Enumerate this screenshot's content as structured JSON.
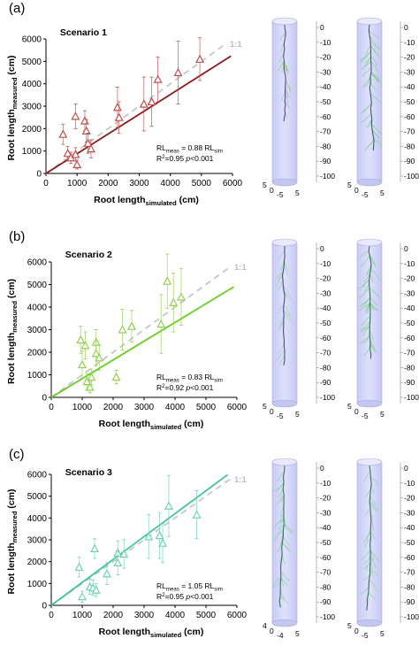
{
  "panels": [
    {
      "letter": "(a)",
      "scenario": "Scenario 1",
      "color": "#c0504d",
      "line_color": "#8b1a1a",
      "eq": {
        "rl": "RL",
        "meas": "meas",
        "eq": " = 0.88 RL",
        "sim": "sim",
        "r2a": "R",
        "r2sup": "2",
        "r2b": "=0.95 ",
        "p": "p",
        "pval": "<0.001"
      }
    },
    {
      "letter": "(b)",
      "scenario": "Scenario 2",
      "color": "#92d050",
      "line_color": "#66cc22",
      "eq": {
        "rl": "RL",
        "meas": "meas",
        "eq": " = 0.83 RL",
        "sim": "sim",
        "r2a": "R",
        "r2sup": "2",
        "r2b": "=0.92 ",
        "p": "p",
        "pval": "<0.001"
      }
    },
    {
      "letter": "(c)",
      "scenario": "Scenario 3",
      "color": "#6fd3b0",
      "line_color": "#40c4a4",
      "eq": {
        "rl": "RL",
        "meas": "meas",
        "eq": " = 1.05 RL",
        "sim": "sim",
        "r2a": "R",
        "r2sup": "2",
        "r2b": "=0.95 ",
        "p": "p",
        "pval": "<0.001"
      }
    }
  ],
  "one_to_one_label": "1:1",
  "axis_labels": {
    "x_main": "Root length",
    "x_sub": "simulated",
    "x_unit": " (cm)",
    "y_main": "Root length",
    "y_sub": "measured",
    "y_unit": " (cm)"
  },
  "depth_ticks": [
    "0",
    "-10",
    "-20",
    "-30",
    "-40",
    "-50",
    "-60",
    "-70",
    "-80",
    "-90",
    "-100"
  ],
  "base_ticks": {
    "a": [
      "5",
      "0",
      "-5",
      "5"
    ],
    "b": [
      "5",
      "0",
      "-5",
      "5"
    ],
    "c_left": [
      "4",
      "0",
      "-4",
      "5"
    ],
    "c_right": [
      "5",
      "0",
      "-5",
      "5"
    ]
  },
  "chart_data": [
    {
      "type": "scatter",
      "title": "Scenario 1",
      "xlabel": "Root length simulated (cm)",
      "ylabel": "Root length measured (cm)",
      "xlim": [
        0,
        6000
      ],
      "ylim": [
        0,
        6000
      ],
      "xticks": [
        0,
        1000,
        2000,
        3000,
        4000,
        5000,
        6000
      ],
      "yticks": [
        0,
        1000,
        2000,
        3000,
        4000,
        5000,
        6000
      ],
      "fit_slope": 0.88,
      "fit_xmax": 5950,
      "points": [
        {
          "x": 550,
          "y": 1750,
          "err": 450
        },
        {
          "x": 700,
          "y": 900,
          "err": 300
        },
        {
          "x": 800,
          "y": 700,
          "err": 250
        },
        {
          "x": 950,
          "y": 2550,
          "err": 550
        },
        {
          "x": 950,
          "y": 850,
          "err": 300
        },
        {
          "x": 1000,
          "y": 400,
          "err": 200
        },
        {
          "x": 1250,
          "y": 2350,
          "err": 450
        },
        {
          "x": 1300,
          "y": 1900,
          "err": 500
        },
        {
          "x": 1350,
          "y": 1350,
          "err": 450
        },
        {
          "x": 1450,
          "y": 1100,
          "err": 400
        },
        {
          "x": 2300,
          "y": 2950,
          "err": 900
        },
        {
          "x": 2350,
          "y": 2500,
          "err": 700
        },
        {
          "x": 3150,
          "y": 3100,
          "err": 1200
        },
        {
          "x": 3400,
          "y": 3200,
          "err": 1100
        },
        {
          "x": 3600,
          "y": 4200,
          "err": 1000
        },
        {
          "x": 4250,
          "y": 4500,
          "err": 1400
        },
        {
          "x": 4950,
          "y": 5100,
          "err": 950
        }
      ]
    },
    {
      "type": "scatter",
      "title": "Scenario 2",
      "xlabel": "Root length simulated (cm)",
      "ylabel": "Root length measured (cm)",
      "xlim": [
        0,
        6000
      ],
      "ylim": [
        0,
        6000
      ],
      "xticks": [
        0,
        1000,
        2000,
        3000,
        4000,
        5000,
        6000
      ],
      "yticks": [
        0,
        1000,
        2000,
        3000,
        4000,
        5000,
        6000
      ],
      "fit_slope": 0.83,
      "fit_xmax": 5900,
      "points": [
        {
          "x": 950,
          "y": 2550,
          "err": 600
        },
        {
          "x": 1000,
          "y": 1450,
          "err": 600
        },
        {
          "x": 1100,
          "y": 2300,
          "err": 600
        },
        {
          "x": 1150,
          "y": 700,
          "err": 350
        },
        {
          "x": 1250,
          "y": 450,
          "err": 250
        },
        {
          "x": 1300,
          "y": 900,
          "err": 350
        },
        {
          "x": 1450,
          "y": 2450,
          "err": 550
        },
        {
          "x": 1450,
          "y": 1950,
          "err": 550
        },
        {
          "x": 1550,
          "y": 1750,
          "err": 550
        },
        {
          "x": 2100,
          "y": 900,
          "err": 300
        },
        {
          "x": 2300,
          "y": 3000,
          "err": 900
        },
        {
          "x": 2600,
          "y": 3150,
          "err": 700
        },
        {
          "x": 3550,
          "y": 3250,
          "err": 1300
        },
        {
          "x": 3750,
          "y": 5150,
          "err": 1200
        },
        {
          "x": 3950,
          "y": 4200,
          "err": 1300
        },
        {
          "x": 4200,
          "y": 4450,
          "err": 1250
        }
      ]
    },
    {
      "type": "scatter",
      "title": "Scenario 3",
      "xlabel": "Root length simulated (cm)",
      "ylabel": "Root length measured (cm)",
      "xlim": [
        0,
        6000
      ],
      "ylim": [
        0,
        6000
      ],
      "xticks": [
        0,
        1000,
        2000,
        3000,
        4000,
        5000,
        6000
      ],
      "yticks": [
        0,
        1000,
        2000,
        3000,
        4000,
        5000,
        6000
      ],
      "fit_slope": 1.05,
      "fit_xmax": 5700,
      "points": [
        {
          "x": 900,
          "y": 1750,
          "err": 450
        },
        {
          "x": 1000,
          "y": 400,
          "err": 250
        },
        {
          "x": 1250,
          "y": 850,
          "err": 350
        },
        {
          "x": 1350,
          "y": 800,
          "err": 350
        },
        {
          "x": 1400,
          "y": 2600,
          "err": 450
        },
        {
          "x": 1450,
          "y": 700,
          "err": 300
        },
        {
          "x": 1800,
          "y": 1450,
          "err": 500
        },
        {
          "x": 2150,
          "y": 2400,
          "err": 550
        },
        {
          "x": 2150,
          "y": 1950,
          "err": 550
        },
        {
          "x": 2350,
          "y": 2350,
          "err": 650
        },
        {
          "x": 3150,
          "y": 3150,
          "err": 1000
        },
        {
          "x": 3500,
          "y": 3200,
          "err": 1050
        },
        {
          "x": 3600,
          "y": 2850,
          "err": 900
        },
        {
          "x": 3800,
          "y": 4550,
          "err": 1400
        },
        {
          "x": 4700,
          "y": 4150,
          "err": 1100
        }
      ]
    }
  ]
}
